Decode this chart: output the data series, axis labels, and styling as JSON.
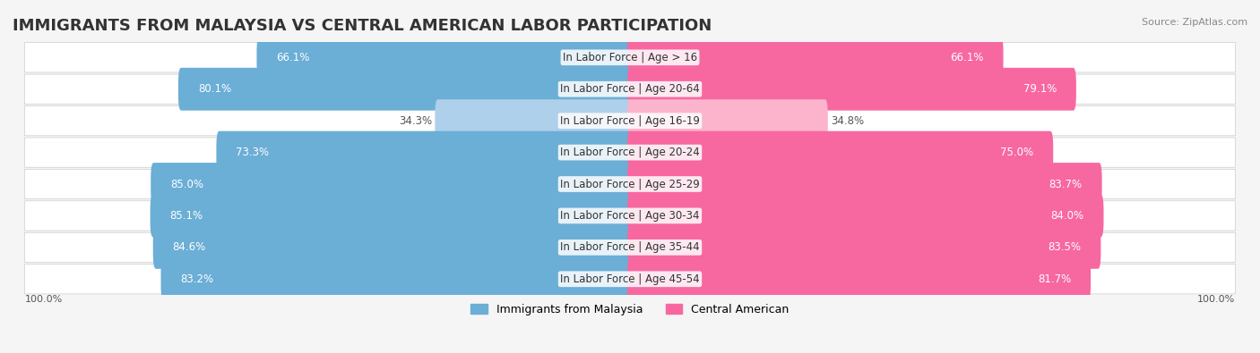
{
  "title": "IMMIGRANTS FROM MALAYSIA VS CENTRAL AMERICAN LABOR PARTICIPATION",
  "source": "Source: ZipAtlas.com",
  "categories": [
    "In Labor Force | Age > 16",
    "In Labor Force | Age 20-64",
    "In Labor Force | Age 16-19",
    "In Labor Force | Age 20-24",
    "In Labor Force | Age 25-29",
    "In Labor Force | Age 30-34",
    "In Labor Force | Age 35-44",
    "In Labor Force | Age 45-54"
  ],
  "malaysia_values": [
    66.1,
    80.1,
    34.3,
    73.3,
    85.0,
    85.1,
    84.6,
    83.2
  ],
  "central_values": [
    66.1,
    79.1,
    34.8,
    75.0,
    83.7,
    84.0,
    83.5,
    81.7
  ],
  "malaysia_color": "#6baed6",
  "central_color": "#f768a1",
  "malaysia_color_light": "#afd0eb",
  "central_color_light": "#fbb4cc",
  "bar_height": 0.35,
  "background_color": "#f5f5f5",
  "row_bg_color": "#ffffff",
  "title_fontsize": 13,
  "label_fontsize": 8.5,
  "value_fontsize": 8.5,
  "legend_label_malaysia": "Immigrants from Malaysia",
  "legend_label_central": "Central American",
  "x_max": 100.0,
  "footer_label": "100.0%"
}
